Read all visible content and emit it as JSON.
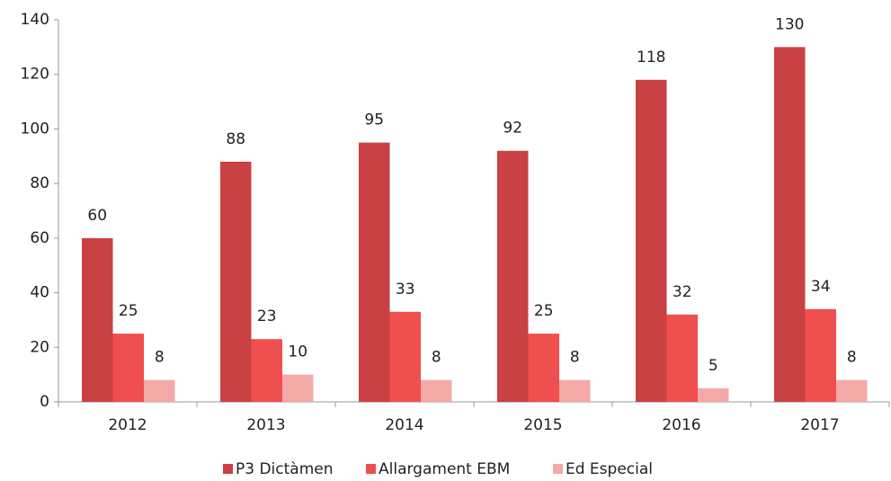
{
  "chart_data": {
    "type": "bar",
    "categories": [
      "2012",
      "2013",
      "2014",
      "2015",
      "2016",
      "2017"
    ],
    "series": [
      {
        "name": "P3 Dictàmen",
        "color": "#c94143",
        "values": [
          60,
          88,
          95,
          92,
          118,
          130
        ]
      },
      {
        "name": "Allargament EBM",
        "color": "#f04f4f",
        "values": [
          25,
          23,
          33,
          25,
          32,
          34
        ]
      },
      {
        "name": "Ed Especial",
        "color": "#f4a9a9",
        "values": [
          8,
          10,
          8,
          8,
          5,
          8
        ]
      }
    ],
    "ylim": [
      0,
      140
    ],
    "yticks": [
      0,
      20,
      40,
      60,
      80,
      100,
      120,
      140
    ],
    "legend": "bottom"
  }
}
